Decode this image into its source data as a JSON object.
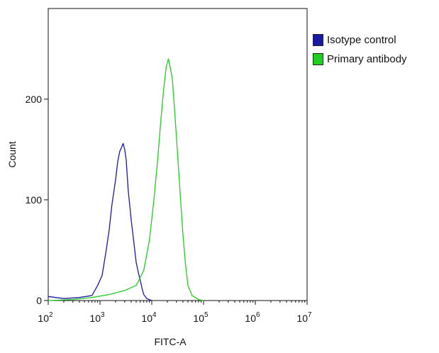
{
  "chart_data": {
    "type": "line",
    "xlabel": "FITC-A",
    "ylabel": "Count",
    "xscale": "log",
    "xlim": [
      100,
      10000000
    ],
    "ylim": [
      0,
      290
    ],
    "x_ticks": [
      {
        "value": 100,
        "base": "10",
        "exp": "2"
      },
      {
        "value": 1000,
        "base": "10",
        "exp": "3"
      },
      {
        "value": 10000,
        "base": "10",
        "exp": "4"
      },
      {
        "value": 100000,
        "base": "10",
        "exp": "5"
      },
      {
        "value": 1000000,
        "base": "10",
        "exp": "6"
      },
      {
        "value": 10000000,
        "base": "10",
        "exp": "7"
      }
    ],
    "y_ticks": [
      0,
      100,
      200
    ],
    "grid": false,
    "legend_position": "top-right",
    "series": [
      {
        "name": "Isotype control",
        "color": "#1a1aa0",
        "x": [
          100,
          200,
          400,
          700,
          900,
          1100,
          1300,
          1500,
          1700,
          2000,
          2200,
          2400,
          2600,
          2800,
          3000,
          3200,
          3500,
          4000,
          4500,
          5000,
          5500,
          6000,
          6500,
          7000,
          8000,
          10000
        ],
        "y": [
          4,
          2,
          3,
          5,
          15,
          25,
          48,
          70,
          95,
          120,
          138,
          148,
          152,
          156,
          150,
          140,
          110,
          80,
          58,
          38,
          28,
          20,
          12,
          6,
          2,
          0
        ]
      },
      {
        "name": "Primary antibody",
        "color": "#22cc22",
        "x": [
          100,
          300,
          700,
          1500,
          3000,
          5000,
          7000,
          9000,
          11000,
          13000,
          15000,
          17000,
          19000,
          21000,
          23000,
          25000,
          28000,
          32000,
          36000,
          40000,
          45000,
          50000,
          60000,
          80000,
          100000
        ],
        "y": [
          0,
          1,
          3,
          6,
          10,
          15,
          30,
          60,
          100,
          140,
          180,
          210,
          232,
          240,
          230,
          220,
          185,
          140,
          100,
          65,
          35,
          15,
          5,
          1,
          0
        ]
      }
    ]
  }
}
